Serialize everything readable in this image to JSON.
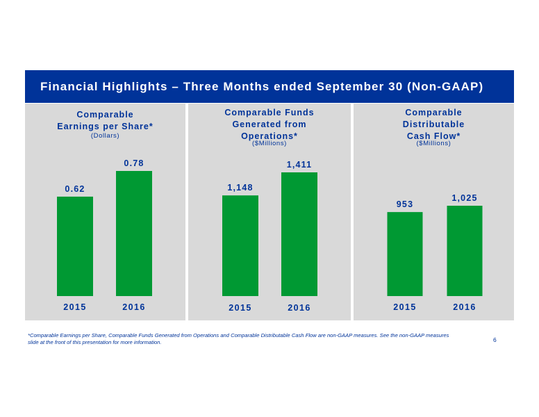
{
  "header": {
    "title": "Financial Highlights – Three Months ended September 30 (Non-GAAP)"
  },
  "panels": [
    {
      "title_lines": [
        "Comparable",
        "Earnings per Share*"
      ],
      "unit": "(Dollars)"
    },
    {
      "title_lines": [
        "Comparable Funds",
        "Generated from",
        "Operations*"
      ],
      "unit": "($Millions)"
    },
    {
      "title_lines": [
        "Comparable",
        "Distributable",
        "Cash Flow*"
      ],
      "unit": "($Millions)"
    }
  ],
  "chart_data": [
    {
      "type": "bar",
      "title": "Comparable Earnings per Share*",
      "ylabel": "(Dollars)",
      "categories": [
        "2015",
        "2016"
      ],
      "values": [
        0.62,
        0.78
      ],
      "labels": [
        "0.62",
        "0.78"
      ],
      "ylim": [
        0,
        0.78
      ],
      "color": "#009933"
    },
    {
      "type": "bar",
      "title": "Comparable Funds Generated from Operations*",
      "ylabel": "($Millions)",
      "categories": [
        "2015",
        "2016"
      ],
      "values": [
        1148,
        1411
      ],
      "labels": [
        "1,148",
        "1,411"
      ],
      "ylim": [
        0,
        1411
      ],
      "color": "#009933"
    },
    {
      "type": "bar",
      "title": "Comparable Distributable Cash Flow*",
      "ylabel": "($Millions)",
      "categories": [
        "2015",
        "2016"
      ],
      "values": [
        953,
        1025
      ],
      "labels": [
        "953",
        "1,025"
      ],
      "ylim": [
        0,
        1025
      ],
      "color": "#009933"
    }
  ],
  "footnote": "*Comparable Earnings per Share, Comparable Funds Generated from Operations and Comparable Distributable Cash Flow are non-GAAP measures. See the non-GAAP measures slide at the front of this presentation for more information.",
  "page_number": "6",
  "colors": {
    "brand_blue": "#003399",
    "bar_green": "#009933",
    "panel_gray": "#d9d9d9"
  }
}
